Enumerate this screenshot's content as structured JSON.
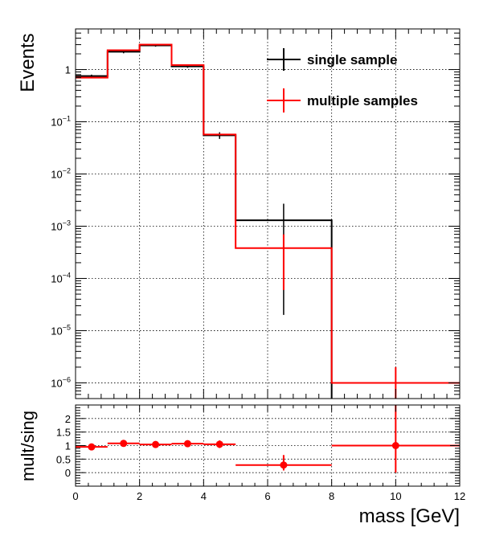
{
  "chart_data": [
    {
      "type": "line",
      "subtype": "histogram-step",
      "ylabel": "Events",
      "yscale": "log",
      "ylim": [
        5e-07,
        6
      ],
      "xlim": [
        0,
        12
      ],
      "grid": true,
      "legend_position": "top-right",
      "bin_edges": [
        0,
        1,
        2,
        3,
        4,
        5,
        8,
        12
      ],
      "yticks": [
        {
          "base": "10",
          "exp": "−6",
          "value": 1e-06
        },
        {
          "base": "10",
          "exp": "−5",
          "value": 1e-05
        },
        {
          "base": "10",
          "exp": "−4",
          "value": 0.0001
        },
        {
          "base": "10",
          "exp": "−3",
          "value": 0.001
        },
        {
          "base": "10",
          "exp": "−2",
          "value": 0.01
        },
        {
          "base": "10",
          "exp": "−1",
          "value": 0.1
        },
        {
          "base": "1",
          "exp": "",
          "value": 1
        }
      ],
      "series": [
        {
          "name": "single sample",
          "color": "#000000",
          "values": [
            0.75,
            2.2,
            2.9,
            1.15,
            0.055,
            0.0013,
            0
          ],
          "err_low": [
            0.7,
            2.05,
            2.75,
            1.08,
            0.047,
            2e-05,
            0
          ],
          "err_high": [
            0.8,
            2.35,
            3.05,
            1.22,
            0.063,
            0.0027,
            0
          ]
        },
        {
          "name": "multiple samples",
          "color": "#ff0000",
          "values": [
            0.7,
            2.35,
            3.0,
            1.22,
            0.057,
            0.00038,
            1e-06
          ],
          "err_low": [
            0.68,
            2.3,
            2.95,
            1.2,
            0.056,
            6e-05,
            4e-07
          ],
          "err_high": [
            0.72,
            2.4,
            3.05,
            1.24,
            0.058,
            0.0007,
            2e-06
          ]
        }
      ]
    },
    {
      "type": "scatter",
      "subtype": "ratio-with-errors",
      "xlabel": "mass [GeV]",
      "ylabel": "mult/sing",
      "xlim": [
        0,
        12
      ],
      "ylim": [
        -0.5,
        2.5
      ],
      "grid": true,
      "xticks": [
        "0",
        "2",
        "4",
        "6",
        "8",
        "10",
        "12"
      ],
      "yticks": [
        "0",
        "0.5",
        "1",
        "1.5",
        "2"
      ],
      "color": "#ff0000",
      "points": [
        {
          "x": 0.5,
          "xlow": 0,
          "xhigh": 1,
          "y": 0.95,
          "elow": 0.05,
          "ehigh": 0.05
        },
        {
          "x": 1.5,
          "xlow": 1,
          "xhigh": 2,
          "y": 1.08,
          "elow": 0.05,
          "ehigh": 0.05
        },
        {
          "x": 2.5,
          "xlow": 2,
          "xhigh": 3,
          "y": 1.04,
          "elow": 0.05,
          "ehigh": 0.05
        },
        {
          "x": 3.5,
          "xlow": 3,
          "xhigh": 4,
          "y": 1.07,
          "elow": 0.05,
          "ehigh": 0.05
        },
        {
          "x": 4.5,
          "xlow": 4,
          "xhigh": 5,
          "y": 1.05,
          "elow": 0.14,
          "ehigh": 0.14
        },
        {
          "x": 6.5,
          "xlow": 5,
          "xhigh": 8,
          "y": 0.28,
          "elow": 0.2,
          "ehigh": 0.37
        },
        {
          "x": 10,
          "xlow": 8,
          "xhigh": 12,
          "y": 1.0,
          "elow": 1.0,
          "ehigh": 1.95
        }
      ]
    }
  ]
}
